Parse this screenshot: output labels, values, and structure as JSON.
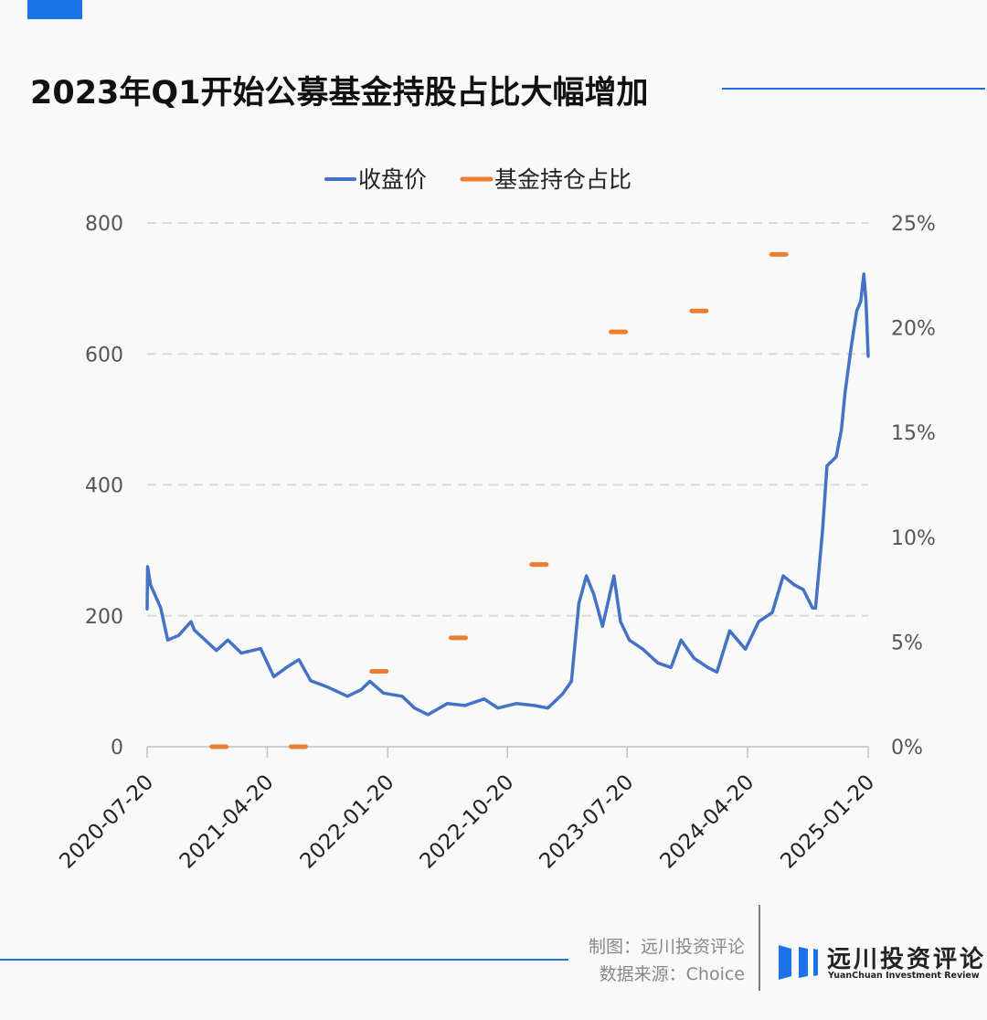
{
  "header": {
    "title": "2023年Q1开始公募基金持股占比大幅增加"
  },
  "footer": {
    "credit": "制图：远川投资评论",
    "source": "数据来源：Choice",
    "logo_cn": "远川投资评论",
    "logo_en": "YuanChuan Investment Review"
  },
  "colors": {
    "accent": "#1a73e8",
    "price": "#4472c4",
    "fund": "#ed7d31",
    "grid": "#d9d9d9"
  },
  "chart_data": {
    "type": "line",
    "title": "2023年Q1开始公募基金持股占比大幅增加",
    "legend": {
      "placement": "top-center",
      "entries": [
        "收盘价",
        "基金持仓占比"
      ]
    },
    "x_range": [
      "2020-07-20",
      "2025-01-20"
    ],
    "x_ticks": [
      "2020-07-20",
      "2021-04-20",
      "2022-01-20",
      "2022-10-20",
      "2023-07-20",
      "2024-04-20",
      "2025-01-20"
    ],
    "y_left": {
      "min": 0,
      "max": 800,
      "ticks": [
        "0",
        "200",
        "400",
        "600",
        "800"
      ]
    },
    "y_right": {
      "min": 0,
      "max": 25,
      "ticks": [
        "0%",
        "5%",
        "10%",
        "15%",
        "20%",
        "25%"
      ]
    },
    "grid": true,
    "series": [
      {
        "name": "收盘价",
        "axis": "left",
        "type": "line",
        "points": [
          [
            "2020-07-20",
            210
          ],
          [
            "2020-07-21",
            275
          ],
          [
            "2020-07-28",
            247
          ],
          [
            "2020-08-20",
            212
          ],
          [
            "2020-09-05",
            163
          ],
          [
            "2020-09-30",
            170
          ],
          [
            "2020-10-28",
            191
          ],
          [
            "2020-11-05",
            178
          ],
          [
            "2020-12-25",
            147
          ],
          [
            "2021-01-20",
            163
          ],
          [
            "2021-02-20",
            143
          ],
          [
            "2021-04-05",
            150
          ],
          [
            "2021-05-05",
            107
          ],
          [
            "2021-06-05",
            122
          ],
          [
            "2021-07-01",
            133
          ],
          [
            "2021-07-28",
            101
          ],
          [
            "2021-09-05",
            91
          ],
          [
            "2021-10-20",
            77
          ],
          [
            "2021-11-20",
            87
          ],
          [
            "2021-12-10",
            100
          ],
          [
            "2022-01-10",
            82
          ],
          [
            "2022-02-22",
            77
          ],
          [
            "2022-03-22",
            59
          ],
          [
            "2022-04-22",
            49
          ],
          [
            "2022-06-05",
            66
          ],
          [
            "2022-07-15",
            63
          ],
          [
            "2022-08-28",
            73
          ],
          [
            "2022-09-28",
            59
          ],
          [
            "2022-11-10",
            66
          ],
          [
            "2022-12-20",
            63
          ],
          [
            "2023-01-20",
            59
          ],
          [
            "2023-02-22",
            80
          ],
          [
            "2023-03-15",
            100
          ],
          [
            "2023-04-01",
            219
          ],
          [
            "2023-04-18",
            261
          ],
          [
            "2023-05-05",
            233
          ],
          [
            "2023-05-25",
            184
          ],
          [
            "2023-06-20",
            261
          ],
          [
            "2023-07-05",
            191
          ],
          [
            "2023-07-25",
            163
          ],
          [
            "2023-08-25",
            149
          ],
          [
            "2023-09-28",
            128
          ],
          [
            "2023-10-28",
            121
          ],
          [
            "2023-11-20",
            163
          ],
          [
            "2023-12-20",
            135
          ],
          [
            "2024-01-20",
            121
          ],
          [
            "2024-02-10",
            114
          ],
          [
            "2024-03-10",
            177
          ],
          [
            "2024-04-15",
            149
          ],
          [
            "2024-05-15",
            191
          ],
          [
            "2024-06-15",
            205
          ],
          [
            "2024-07-10",
            261
          ],
          [
            "2024-08-05",
            247
          ],
          [
            "2024-08-25",
            240
          ],
          [
            "2024-09-15",
            212
          ],
          [
            "2024-09-22",
            212
          ],
          [
            "2024-10-08",
            331
          ],
          [
            "2024-10-18",
            429
          ],
          [
            "2024-11-08",
            443
          ],
          [
            "2024-11-20",
            484
          ],
          [
            "2024-11-28",
            540
          ],
          [
            "2024-12-12",
            610
          ],
          [
            "2024-12-25",
            666
          ],
          [
            "2025-01-03",
            680
          ],
          [
            "2025-01-10",
            722
          ],
          [
            "2025-01-15",
            680
          ],
          [
            "2025-01-20",
            596
          ]
        ]
      },
      {
        "name": "基金持仓占比",
        "axis": "right",
        "type": "marker-dash",
        "points": [
          [
            "2020-12-31",
            0
          ],
          [
            "2021-06-30",
            0
          ],
          [
            "2021-12-31",
            3.6
          ],
          [
            "2022-06-30",
            5.2
          ],
          [
            "2022-12-31",
            8.7
          ],
          [
            "2023-06-30",
            19.8
          ],
          [
            "2023-12-31",
            20.8
          ],
          [
            "2024-06-30",
            23.5
          ]
        ]
      }
    ]
  }
}
